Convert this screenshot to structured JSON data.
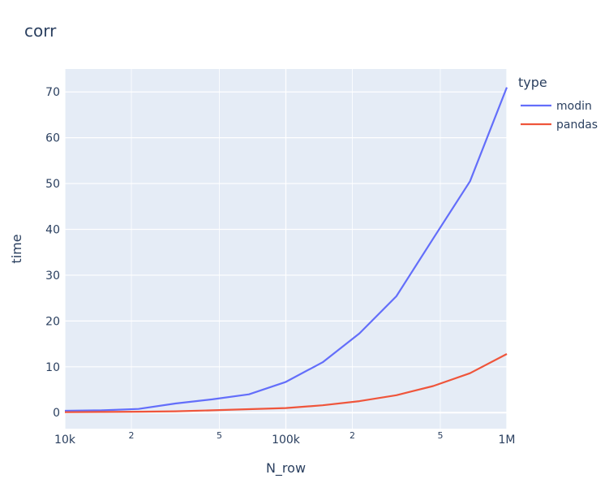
{
  "chart_data": {
    "type": "line",
    "title": "corr",
    "xlabel": "N_row",
    "ylabel": "time",
    "x_scale": "log",
    "xlim": [
      10000,
      1000000
    ],
    "ylim": [
      -3.5,
      75
    ],
    "grid": true,
    "legend": {
      "title": "type",
      "placement": "top-right"
    },
    "x_ticks": [
      {
        "value": 10000,
        "label": "10k",
        "major": true
      },
      {
        "value": 20000,
        "label": "2",
        "major": false
      },
      {
        "value": 50000,
        "label": "5",
        "major": false
      },
      {
        "value": 100000,
        "label": "100k",
        "major": true
      },
      {
        "value": 200000,
        "label": "2",
        "major": false
      },
      {
        "value": 500000,
        "label": "5",
        "major": false
      },
      {
        "value": 1000000,
        "label": "1M",
        "major": true
      }
    ],
    "y_ticks": [
      {
        "value": 0,
        "label": "0"
      },
      {
        "value": 10,
        "label": "10"
      },
      {
        "value": 20,
        "label": "20"
      },
      {
        "value": 30,
        "label": "30"
      },
      {
        "value": 40,
        "label": "40"
      },
      {
        "value": 50,
        "label": "50"
      },
      {
        "value": 60,
        "label": "60"
      },
      {
        "value": 70,
        "label": "70"
      }
    ],
    "x": [
      10000,
      14678,
      21544,
      31623,
      46416,
      68129,
      100000,
      146780,
      215440,
      316230,
      464160,
      681290,
      1000000
    ],
    "series": [
      {
        "name": "modin",
        "color": "#636efa",
        "values": [
          0.4,
          0.5,
          0.8,
          2.0,
          2.9,
          4.0,
          6.7,
          11.0,
          17.3,
          25.4,
          38.0,
          50.5,
          71.0
        ]
      },
      {
        "name": "pandas",
        "color": "#ef553b",
        "values": [
          0.1,
          0.15,
          0.2,
          0.3,
          0.5,
          0.75,
          1.0,
          1.6,
          2.5,
          3.8,
          5.8,
          8.6,
          12.8
        ]
      }
    ]
  }
}
